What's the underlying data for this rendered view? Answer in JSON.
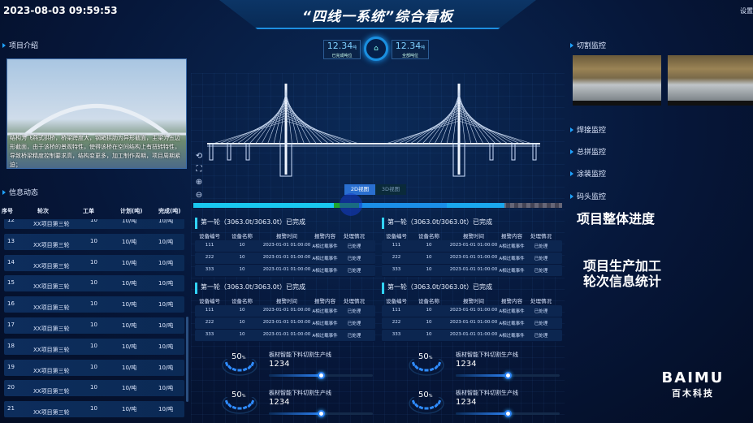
{
  "header": {
    "datetime": "2023-08-03 09:59:53",
    "title": "“四线一系统”综合看板",
    "settings": "设置"
  },
  "left": {
    "intro_title": "项目介绍",
    "intro_text": "结构为飞燕式拱桥，桥梁跨度大，钢箱拱肋为异形截面，主梁为五边形截面，由于该桥的景观特性，使得该桥在空间结构上有扭转特性，导致桥梁精度控制要求高，结构变更多，加工制作周期，项目周期紧迫；",
    "news_title": "信息动态",
    "columns": [
      "序号",
      "轮次",
      "工单",
      "计划(吨)",
      "完成(吨)"
    ],
    "rows": [
      [
        "12",
        "XX项目第三轮",
        "10",
        "10/吨",
        "10/吨"
      ],
      [
        "13",
        "XX项目第三轮",
        "10",
        "10/吨",
        "10/吨"
      ],
      [
        "14",
        "XX项目第三轮",
        "10",
        "10/吨",
        "10/吨"
      ],
      [
        "15",
        "XX项目第三轮",
        "10",
        "10/吨",
        "10/吨"
      ],
      [
        "16",
        "XX项目第三轮",
        "10",
        "10/吨",
        "10/吨"
      ],
      [
        "17",
        "XX项目第三轮",
        "10",
        "10/吨",
        "10/吨"
      ],
      [
        "18",
        "XX项目第三轮",
        "10",
        "10/吨",
        "10/吨"
      ],
      [
        "19",
        "XX项目第三轮",
        "10",
        "10/吨",
        "10/吨"
      ],
      [
        "20",
        "XX项目第三轮",
        "10",
        "10/吨",
        "10/吨"
      ],
      [
        "21",
        "XX项目第三轮",
        "10",
        "10/吨",
        "10/吨"
      ]
    ]
  },
  "center": {
    "stats": [
      {
        "value": "12.34",
        "unit": "吨",
        "label": "已完成吨位"
      },
      {
        "value": "12.34",
        "unit": "吨",
        "label": "全部吨位"
      }
    ],
    "stat_icon": "building-icon",
    "tabs": [
      {
        "label": "2D视图",
        "active": true
      },
      {
        "label": "3D视图",
        "active": false
      }
    ],
    "view_tools": [
      "rotate-icon",
      "fullscreen-icon",
      "zoom-in-icon",
      "zoom-out-icon"
    ],
    "panels": [
      {
        "title": "第一轮（3063.0t/3063.0t）已完成",
        "columns": [
          "设备编号",
          "设备名称",
          "报警时间",
          "报警内容",
          "处理情况"
        ],
        "rows": [
          [
            "111",
            "10",
            "2023-01-01 01:00:00",
            "A相过载事件",
            "已处理"
          ],
          [
            "222",
            "10",
            "2023-01-01 01:00:00",
            "A相过载事件",
            "已处理"
          ],
          [
            "333",
            "10",
            "2023-01-01 01:00:00",
            "A相过载事件",
            "已处理"
          ]
        ]
      },
      {
        "title": "第一轮（3063.0t/3063.0t）已完成",
        "columns": [
          "设备编号",
          "设备名称",
          "报警时间",
          "报警内容",
          "处理情况"
        ],
        "rows": [
          [
            "111",
            "10",
            "2023-01-01 01:00:00",
            "A相过载事件",
            "已处理"
          ],
          [
            "222",
            "10",
            "2023-01-01 01:00:00",
            "A相过载事件",
            "已处理"
          ],
          [
            "333",
            "10",
            "2023-01-01 01:00:00",
            "A相过载事件",
            "已处理"
          ]
        ]
      },
      {
        "title": "第一轮（3063.0t/3063.0t）已完成",
        "columns": [
          "设备编号",
          "设备名称",
          "报警时间",
          "报警内容",
          "处理情况"
        ],
        "rows": [
          [
            "111",
            "10",
            "2023-01-01 01:00:00",
            "A相过载事件",
            "已处理"
          ],
          [
            "222",
            "10",
            "2023-01-01 01:00:00",
            "A相过载事件",
            "已处理"
          ],
          [
            "333",
            "10",
            "2023-01-01 01:00:00",
            "A相过载事件",
            "已处理"
          ]
        ]
      },
      {
        "title": "第一轮（3063.0t/3063.0t）已完成",
        "columns": [
          "设备编号",
          "设备名称",
          "报警时间",
          "报警内容",
          "处理情况"
        ],
        "rows": [
          [
            "111",
            "10",
            "2023-01-01 01:00:00",
            "A相过载事件",
            "已处理"
          ],
          [
            "222",
            "10",
            "2023-01-01 01:00:00",
            "A相过载事件",
            "已处理"
          ],
          [
            "333",
            "10",
            "2023-01-01 01:00:00",
            "A相过载事件",
            "已处理"
          ]
        ]
      }
    ],
    "gauges": [
      {
        "percent": "50",
        "unit": "%",
        "name": "板材智能下料切割生产线",
        "value": "1234",
        "level": 0.5
      },
      {
        "percent": "50",
        "unit": "%",
        "name": "板材智能下料切割生产线",
        "value": "1234",
        "level": 0.5
      },
      {
        "percent": "50",
        "unit": "%",
        "name": "板材智能下料切割生产线",
        "value": "1234",
        "level": 0.5
      },
      {
        "percent": "50",
        "unit": "%",
        "name": "板材智能下料切割生产线",
        "value": "1234",
        "level": 0.5
      }
    ]
  },
  "right": {
    "monitors": [
      "切割监控",
      "焊接监控",
      "总拼监控",
      "涂装监控",
      "码头监控"
    ],
    "overall": "项目整体进度",
    "stats_line1": "项目生产加工",
    "stats_line2": "轮次信息统计",
    "logo": "BAIMU",
    "logo_cn": "百木科技"
  },
  "colors": {
    "accent": "#1fa3ff",
    "progress": "#19c8f0",
    "highlight": "#1fa52a"
  }
}
